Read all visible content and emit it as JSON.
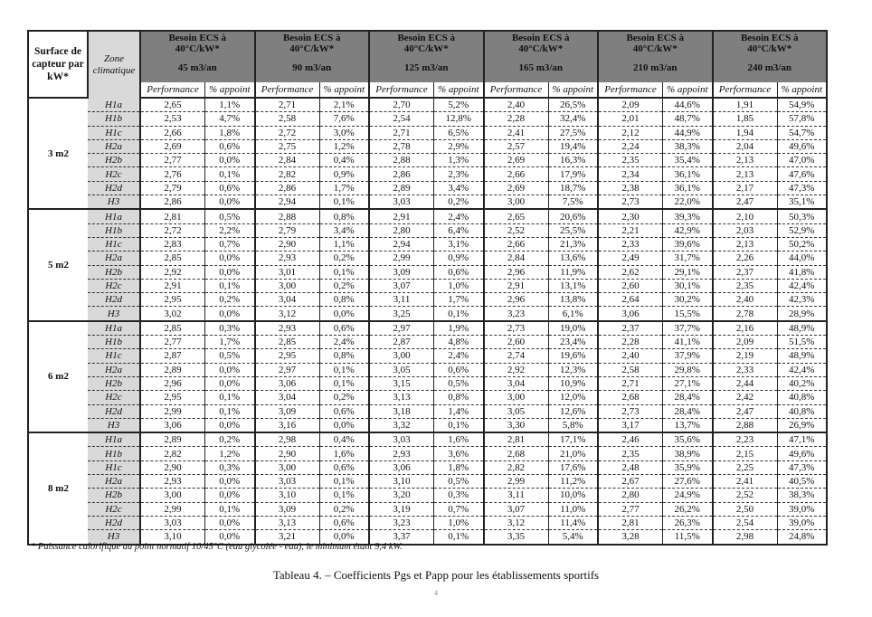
{
  "header": {
    "surface_label": "Surface de capteur par kW*",
    "zone_label": "Zone climatique",
    "group_title": "Besoin ECS à 40°C/kW*",
    "groups": [
      "45 m3/an",
      "90 m3/an",
      "125 m3/an",
      "165 m3/an",
      "210 m3/an",
      "240 m3/an"
    ],
    "sub_perf": "Performance",
    "sub_app": "% appoint"
  },
  "blocks": [
    {
      "surface": "3 m2",
      "rows": [
        {
          "zone": "H1a",
          "v": [
            "2,65",
            "1,1%",
            "2,71",
            "2,1%",
            "2,70",
            "5,2%",
            "2,40",
            "26,5%",
            "2,09",
            "44,6%",
            "1,91",
            "54,9%"
          ]
        },
        {
          "zone": "H1b",
          "v": [
            "2,53",
            "4,7%",
            "2,58",
            "7,6%",
            "2,54",
            "12,8%",
            "2,28",
            "32,4%",
            "2,01",
            "48,7%",
            "1,85",
            "57,8%"
          ]
        },
        {
          "zone": "H1c",
          "v": [
            "2,66",
            "1,8%",
            "2,72",
            "3,0%",
            "2,71",
            "6,5%",
            "2,41",
            "27,5%",
            "2,12",
            "44,9%",
            "1,94",
            "54,7%"
          ]
        },
        {
          "zone": "H2a",
          "v": [
            "2,69",
            "0,6%",
            "2,75",
            "1,2%",
            "2,78",
            "2,9%",
            "2,57",
            "19,4%",
            "2,24",
            "38,3%",
            "2,04",
            "49,6%"
          ]
        },
        {
          "zone": "H2b",
          "v": [
            "2,77",
            "0,0%",
            "2,84",
            "0,4%",
            "2,88",
            "1,3%",
            "2,69",
            "16,3%",
            "2,35",
            "35,4%",
            "2,13",
            "47,0%"
          ]
        },
        {
          "zone": "H2c",
          "v": [
            "2,76",
            "0,1%",
            "2,82",
            "0,9%",
            "2,86",
            "2,3%",
            "2,66",
            "17,9%",
            "2,34",
            "36,1%",
            "2,13",
            "47,6%"
          ]
        },
        {
          "zone": "H2d",
          "v": [
            "2,79",
            "0,6%",
            "2,86",
            "1,7%",
            "2,89",
            "3,4%",
            "2,69",
            "18,7%",
            "2,38",
            "36,1%",
            "2,17",
            "47,3%"
          ]
        },
        {
          "zone": "H3",
          "v": [
            "2,86",
            "0,0%",
            "2,94",
            "0,1%",
            "3,03",
            "0,2%",
            "3,00",
            "7,5%",
            "2,73",
            "22,0%",
            "2,47",
            "35,1%"
          ]
        }
      ]
    },
    {
      "surface": "5 m2",
      "rows": [
        {
          "zone": "H1a",
          "v": [
            "2,81",
            "0,5%",
            "2,88",
            "0,8%",
            "2,91",
            "2,4%",
            "2,65",
            "20,6%",
            "2,30",
            "39,3%",
            "2,10",
            "50,3%"
          ]
        },
        {
          "zone": "H1b",
          "v": [
            "2,72",
            "2,2%",
            "2,79",
            "3,4%",
            "2,80",
            "6,4%",
            "2,52",
            "25,5%",
            "2,21",
            "42,9%",
            "2,03",
            "52,9%"
          ]
        },
        {
          "zone": "H1c",
          "v": [
            "2,83",
            "0,7%",
            "2,90",
            "1,1%",
            "2,94",
            "3,1%",
            "2,66",
            "21,3%",
            "2,33",
            "39,6%",
            "2,13",
            "50,2%"
          ]
        },
        {
          "zone": "H2a",
          "v": [
            "2,85",
            "0,0%",
            "2,93",
            "0,2%",
            "2,99",
            "0,9%",
            "2,84",
            "13,6%",
            "2,49",
            "31,7%",
            "2,26",
            "44,0%"
          ]
        },
        {
          "zone": "H2b",
          "v": [
            "2,92",
            "0,0%",
            "3,01",
            "0,1%",
            "3,09",
            "0,6%",
            "2,96",
            "11,9%",
            "2,62",
            "29,1%",
            "2,37",
            "41,8%"
          ]
        },
        {
          "zone": "H2c",
          "v": [
            "2,91",
            "0,1%",
            "3,00",
            "0,2%",
            "3,07",
            "1,0%",
            "2,91",
            "13,1%",
            "2,60",
            "30,1%",
            "2,35",
            "42,4%"
          ]
        },
        {
          "zone": "H2d",
          "v": [
            "2,95",
            "0,2%",
            "3,04",
            "0,8%",
            "3,11",
            "1,7%",
            "2,96",
            "13,8%",
            "2,64",
            "30,2%",
            "2,40",
            "42,3%"
          ]
        },
        {
          "zone": "H3",
          "v": [
            "3,02",
            "0,0%",
            "3,12",
            "0,0%",
            "3,25",
            "0,1%",
            "3,23",
            "6,1%",
            "3,06",
            "15,5%",
            "2,78",
            "28,9%"
          ]
        }
      ]
    },
    {
      "surface": "6 m2",
      "rows": [
        {
          "zone": "H1a",
          "v": [
            "2,85",
            "0,3%",
            "2,93",
            "0,6%",
            "2,97",
            "1,9%",
            "2,73",
            "19,0%",
            "2,37",
            "37,7%",
            "2,16",
            "48,9%"
          ]
        },
        {
          "zone": "H1b",
          "v": [
            "2,77",
            "1,7%",
            "2,85",
            "2,4%",
            "2,87",
            "4,8%",
            "2,60",
            "23,4%",
            "2,28",
            "41,1%",
            "2,09",
            "51,5%"
          ]
        },
        {
          "zone": "H1c",
          "v": [
            "2,87",
            "0,5%",
            "2,95",
            "0,8%",
            "3,00",
            "2,4%",
            "2,74",
            "19,6%",
            "2,40",
            "37,9%",
            "2,19",
            "48,9%"
          ]
        },
        {
          "zone": "H2a",
          "v": [
            "2,89",
            "0,0%",
            "2,97",
            "0,1%",
            "3,05",
            "0,6%",
            "2,92",
            "12,3%",
            "2,58",
            "29,8%",
            "2,33",
            "42,4%"
          ]
        },
        {
          "zone": "H2b",
          "v": [
            "2,96",
            "0,0%",
            "3,06",
            "0,1%",
            "3,15",
            "0,5%",
            "3,04",
            "10,9%",
            "2,71",
            "27,1%",
            "2,44",
            "40,2%"
          ]
        },
        {
          "zone": "H2c",
          "v": [
            "2,95",
            "0,1%",
            "3,04",
            "0,2%",
            "3,13",
            "0,8%",
            "3,00",
            "12,0%",
            "2,68",
            "28,4%",
            "2,42",
            "40,8%"
          ]
        },
        {
          "zone": "H2d",
          "v": [
            "2,99",
            "0,1%",
            "3,09",
            "0,6%",
            "3,18",
            "1,4%",
            "3,05",
            "12,6%",
            "2,73",
            "28,4%",
            "2,47",
            "40,8%"
          ]
        },
        {
          "zone": "H3",
          "v": [
            "3,06",
            "0,0%",
            "3,16",
            "0,0%",
            "3,32",
            "0,1%",
            "3,30",
            "5,8%",
            "3,17",
            "13,7%",
            "2,88",
            "26,9%"
          ]
        }
      ]
    },
    {
      "surface": "8 m2",
      "rows": [
        {
          "zone": "H1a",
          "v": [
            "2,89",
            "0,2%",
            "2,98",
            "0,4%",
            "3,03",
            "1,6%",
            "2,81",
            "17,1%",
            "2,46",
            "35,6%",
            "2,23",
            "47,1%"
          ]
        },
        {
          "zone": "H1b",
          "v": [
            "2,82",
            "1,2%",
            "2,90",
            "1,6%",
            "2,93",
            "3,6%",
            "2,68",
            "21,0%",
            "2,35",
            "38,9%",
            "2,15",
            "49,6%"
          ]
        },
        {
          "zone": "H1c",
          "v": [
            "2,90",
            "0,3%",
            "3,00",
            "0,6%",
            "3,06",
            "1,8%",
            "2,82",
            "17,6%",
            "2,48",
            "35,9%",
            "2,25",
            "47,3%"
          ]
        },
        {
          "zone": "H2a",
          "v": [
            "2,93",
            "0,0%",
            "3,03",
            "0,1%",
            "3,10",
            "0,5%",
            "2,99",
            "11,2%",
            "2,67",
            "27,6%",
            "2,41",
            "40,5%"
          ]
        },
        {
          "zone": "H2b",
          "v": [
            "3,00",
            "0,0%",
            "3,10",
            "0,1%",
            "3,20",
            "0,3%",
            "3,11",
            "10,0%",
            "2,80",
            "24,9%",
            "2,52",
            "38,3%"
          ]
        },
        {
          "zone": "H2c",
          "v": [
            "2,99",
            "0,1%",
            "3,09",
            "0,2%",
            "3,19",
            "0,7%",
            "3,07",
            "11,0%",
            "2,77",
            "26,2%",
            "2,50",
            "39,0%"
          ]
        },
        {
          "zone": "H2d",
          "v": [
            "3,03",
            "0,0%",
            "3,13",
            "0,6%",
            "3,23",
            "1,0%",
            "3,12",
            "11,4%",
            "2,81",
            "26,3%",
            "2,54",
            "39,0%"
          ]
        },
        {
          "zone": "H3",
          "v": [
            "3,10",
            "0,0%",
            "3,21",
            "0,0%",
            "3,37",
            "0,1%",
            "3,35",
            "5,4%",
            "3,28",
            "11,5%",
            "2,98",
            "24,8%"
          ]
        }
      ]
    }
  ],
  "footnote": "* Puissance calorifique au point normatif 10/45°C (eau glycolée - eau), le minimum étant 9,4 kW.",
  "caption": "Tableau 4. – Coefficients Pgs et Papp pour les établissements sportifs",
  "page_number": "4"
}
